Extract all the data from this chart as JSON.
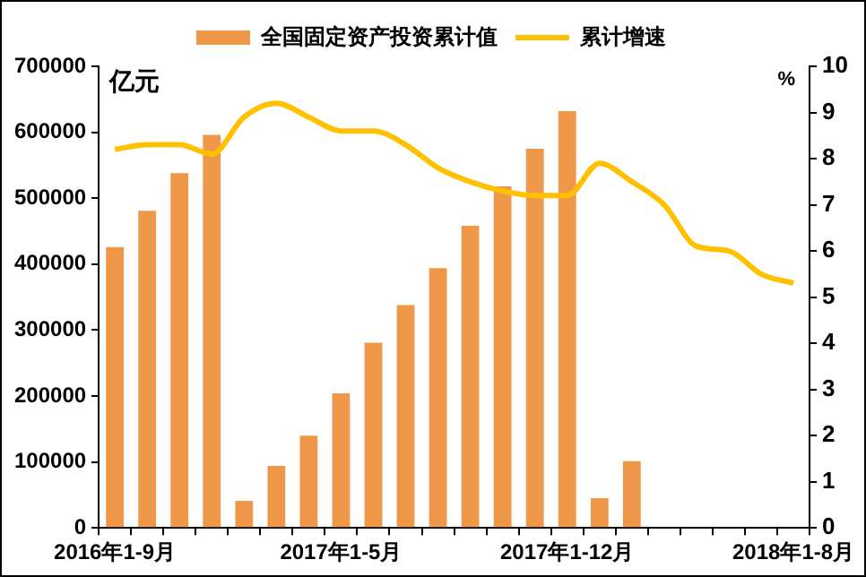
{
  "chart_data": {
    "type": "bar",
    "ylabel": "亿元",
    "y2label": "%",
    "categories": [
      "2016年1-9月",
      null,
      null,
      null,
      null,
      null,
      null,
      "2017年1-5月",
      null,
      null,
      null,
      null,
      null,
      null,
      "2017年1-12月",
      null,
      null,
      null,
      null,
      null,
      null,
      "2018年1-8月"
    ],
    "series": [
      {
        "name": "全国固定资产投资累计值",
        "color": "#f0984a",
        "values": [
          426000,
          481000,
          538000,
          596000,
          41000,
          94000,
          140000,
          204000,
          281000,
          338000,
          394000,
          458000,
          518000,
          575000,
          632000,
          45000,
          101000,
          null,
          null,
          null,
          null,
          null
        ]
      },
      {
        "name": "累计增速",
        "type": "line",
        "axis": "y2",
        "color": "#ffc000",
        "values": [
          8.2,
          8.3,
          8.3,
          8.1,
          8.9,
          9.2,
          8.9,
          8.6,
          8.6,
          8.3,
          7.8,
          7.5,
          7.3,
          7.2,
          7.2,
          7.9,
          7.5,
          7.0,
          6.1,
          6.0,
          5.5,
          5.3
        ]
      }
    ],
    "ylim": [
      0,
      700000
    ],
    "yticks": [
      0,
      100000,
      200000,
      300000,
      400000,
      500000,
      600000,
      700000
    ],
    "y2lim": [
      0,
      10
    ],
    "y2ticks": [
      0,
      1,
      2,
      3,
      4,
      5,
      6,
      7,
      8,
      9,
      10
    ],
    "grid": false,
    "legend": "top",
    "marker": "none"
  }
}
